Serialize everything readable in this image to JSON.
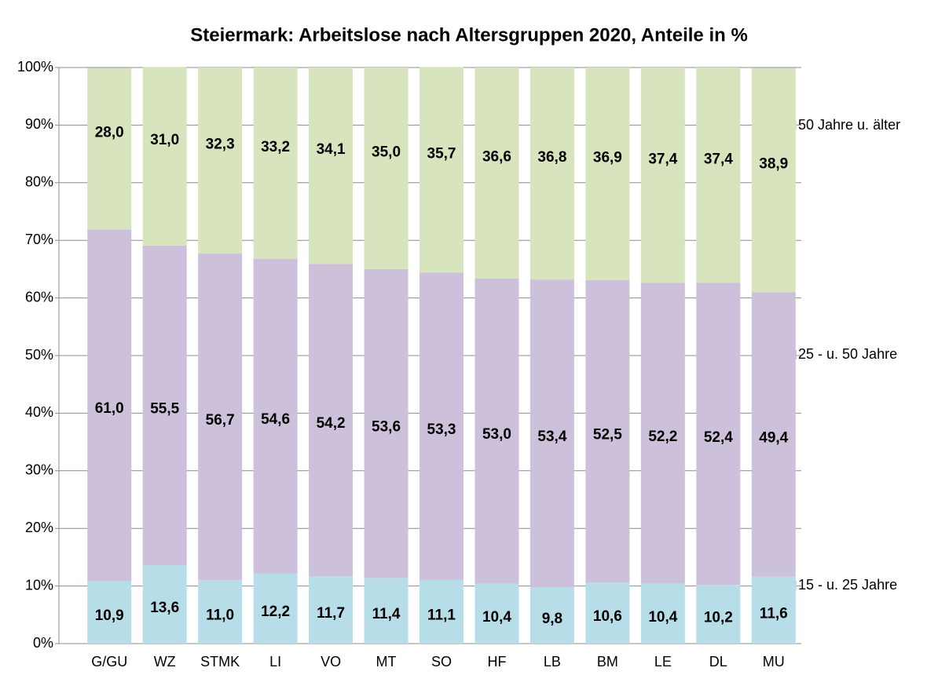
{
  "chart_data": {
    "type": "bar",
    "stacked": true,
    "title": "Steiermark: Arbeitslose nach Altersgruppen 2020, Anteile in %",
    "categories": [
      "G/GU",
      "WZ",
      "STMK",
      "LI",
      "VO",
      "MT",
      "SO",
      "HF",
      "LB",
      "BM",
      "LE",
      "DL",
      "MU"
    ],
    "series": [
      {
        "name": "15 - u. 25 Jahre",
        "color": "#b7dde8",
        "values": [
          10.9,
          13.6,
          11.0,
          12.2,
          11.7,
          11.4,
          11.1,
          10.4,
          9.8,
          10.6,
          10.4,
          10.2,
          11.6
        ],
        "value_labels": [
          "10,9",
          "13,6",
          "11,0",
          "12,2",
          "11,7",
          "11,4",
          "11,1",
          "10,4",
          "9,8",
          "10,6",
          "10,4",
          "10,2",
          "11,6"
        ]
      },
      {
        "name": "25 - u. 50 Jahre",
        "color": "#ccc0da",
        "values": [
          61.0,
          55.5,
          56.7,
          54.6,
          54.2,
          53.6,
          53.3,
          53.0,
          53.4,
          52.5,
          52.2,
          52.4,
          49.4
        ],
        "value_labels": [
          "61,0",
          "55,5",
          "56,7",
          "54,6",
          "54,2",
          "53,6",
          "53,3",
          "53,0",
          "53,4",
          "52,5",
          "52,2",
          "52,4",
          "49,4"
        ]
      },
      {
        "name": "50 Jahre u. älter",
        "color": "#d7e4bd",
        "values": [
          28.0,
          31.0,
          32.3,
          33.2,
          34.1,
          35.0,
          35.7,
          36.6,
          36.8,
          36.9,
          37.4,
          37.4,
          38.9
        ],
        "value_labels": [
          "28,0",
          "31,0",
          "32,3",
          "33,2",
          "34,1",
          "35,0",
          "35,7",
          "36,6",
          "36,8",
          "36,9",
          "37,4",
          "37,4",
          "38,9"
        ]
      }
    ],
    "ylim": [
      0,
      100
    ],
    "yticks": [
      {
        "value": 0,
        "label": "0%"
      },
      {
        "value": 10,
        "label": "10%"
      },
      {
        "value": 20,
        "label": "20%"
      },
      {
        "value": 30,
        "label": "30%"
      },
      {
        "value": 40,
        "label": "40%"
      },
      {
        "value": 50,
        "label": "50%"
      },
      {
        "value": 60,
        "label": "60%"
      },
      {
        "value": 70,
        "label": "70%"
      },
      {
        "value": 80,
        "label": "80%"
      },
      {
        "value": 90,
        "label": "90%"
      },
      {
        "value": 100,
        "label": "100%"
      }
    ],
    "grid": true,
    "legend": "right"
  }
}
